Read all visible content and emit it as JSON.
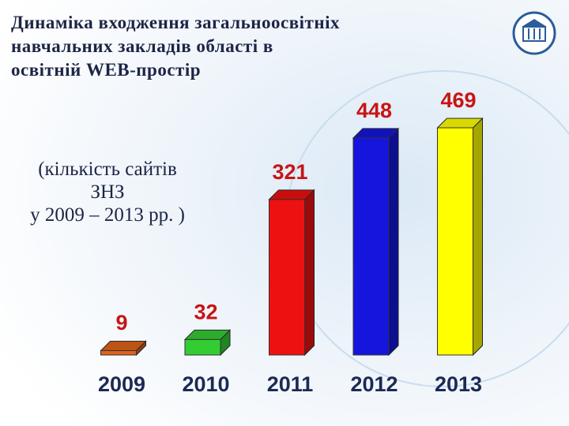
{
  "chart_data": {
    "type": "bar",
    "title_lines": [
      "Динаміка входження загальноосвітніх",
      "навчальних закладів області в",
      "освітній WEB-простір"
    ],
    "subtitle_lines": [
      "(кількість сайтів",
      "ЗНЗ",
      "у 2009 – 2013 рр. )"
    ],
    "categories": [
      "2009",
      "2010",
      "2011",
      "2012",
      "2013"
    ],
    "values": [
      9,
      32,
      321,
      448,
      469
    ],
    "colors": [
      "#e0621a",
      "#33cc33",
      "#ee1111",
      "#1515dd",
      "#ffff00"
    ],
    "data_labels": true
  }
}
